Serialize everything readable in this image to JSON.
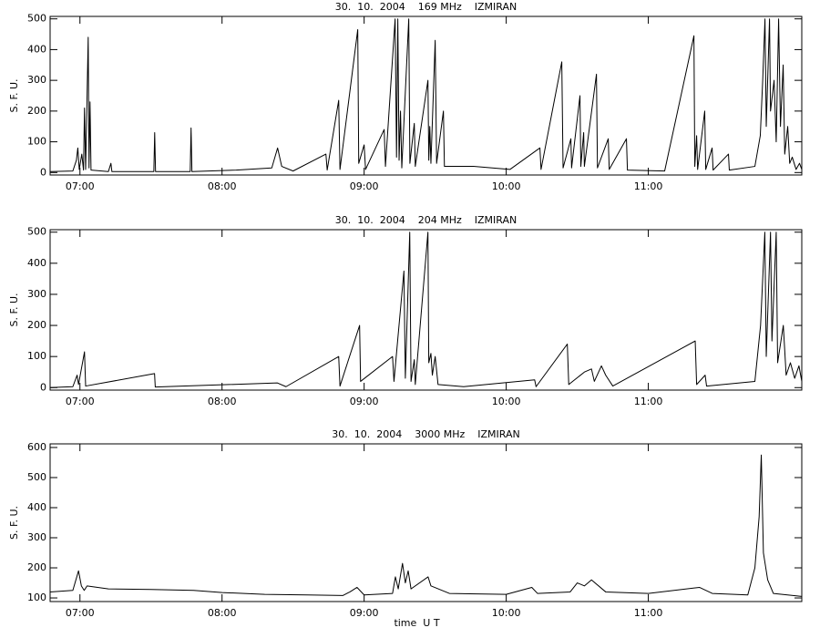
{
  "chart_data": [
    {
      "type": "line",
      "title": "30.  10.  2004    169 MHz    IZMIRAN",
      "ylabel": "S. F. U.",
      "color": "#000000",
      "xlim": [
        6.79,
        12.08
      ],
      "ylim": [
        -8,
        508
      ],
      "xticks": [
        {
          "value": 7,
          "label": "07:00"
        },
        {
          "value": 8,
          "label": "08:00"
        },
        {
          "value": 9,
          "label": "09:00"
        },
        {
          "value": 10,
          "label": "10:00"
        },
        {
          "value": 11,
          "label": "11:00"
        }
      ],
      "yticks": [
        0,
        100,
        200,
        300,
        400,
        500
      ],
      "x": [
        6.79,
        6.95,
        6.975,
        6.985,
        6.995,
        7.013,
        7.025,
        7.032,
        7.04,
        7.058,
        7.064,
        7.071,
        7.078,
        7.2,
        7.218,
        7.225,
        7.52,
        7.526,
        7.532,
        7.776,
        7.782,
        7.788,
        8.1,
        8.35,
        8.391,
        8.42,
        8.5,
        8.731,
        8.74,
        8.821,
        8.83,
        8.955,
        8.962,
        9.0,
        9.01,
        9.141,
        9.15,
        9.218,
        9.228,
        9.237,
        9.246,
        9.256,
        9.265,
        9.314,
        9.322,
        9.353,
        9.36,
        9.449,
        9.455,
        9.462,
        9.47,
        9.5,
        9.51,
        9.558,
        9.565,
        9.769,
        10.026,
        10.237,
        10.245,
        10.391,
        10.4,
        10.455,
        10.46,
        10.519,
        10.525,
        10.545,
        10.55,
        10.635,
        10.642,
        10.718,
        10.725,
        10.846,
        10.853,
        11.115,
        11.321,
        11.327,
        11.34,
        11.347,
        11.397,
        11.404,
        11.449,
        11.456,
        11.564,
        11.57,
        11.75,
        11.788,
        11.805,
        11.821,
        11.83,
        11.853,
        11.86,
        11.885,
        11.9,
        11.917,
        11.93,
        11.949,
        11.96,
        11.981,
        11.995,
        12.013,
        12.04,
        12.064,
        12.08
      ],
      "values": [
        3,
        5,
        40,
        80,
        10,
        60,
        8,
        210,
        10,
        440,
        15,
        230,
        8,
        3,
        30,
        3,
        3,
        130,
        3,
        3,
        145,
        3,
        8,
        15,
        80,
        20,
        5,
        60,
        8,
        235,
        10,
        465,
        30,
        90,
        10,
        140,
        20,
        500,
        50,
        500,
        40,
        200,
        15,
        500,
        30,
        160,
        20,
        300,
        40,
        150,
        30,
        430,
        30,
        200,
        20,
        20,
        10,
        80,
        10,
        360,
        15,
        110,
        15,
        250,
        20,
        130,
        20,
        320,
        15,
        110,
        10,
        110,
        8,
        5,
        445,
        20,
        120,
        10,
        200,
        10,
        80,
        8,
        60,
        8,
        20,
        120,
        300,
        500,
        150,
        500,
        200,
        300,
        100,
        500,
        150,
        350,
        60,
        150,
        30,
        50,
        10,
        30,
        10
      ]
    },
    {
      "type": "line",
      "title": "30.  10.  2004    204 MHz    IZMIRAN",
      "ylabel": "S. F. U.",
      "color": "#000000",
      "xlim": [
        6.79,
        12.08
      ],
      "ylim": [
        -8,
        508
      ],
      "xticks": [
        {
          "value": 7,
          "label": "07:00"
        },
        {
          "value": 8,
          "label": "08:00"
        },
        {
          "value": 9,
          "label": "09:00"
        },
        {
          "value": 10,
          "label": "10:00"
        },
        {
          "value": 11,
          "label": "11:00"
        }
      ],
      "yticks": [
        0,
        100,
        200,
        300,
        400,
        500
      ],
      "x": [
        6.79,
        6.95,
        6.98,
        6.99,
        7.032,
        7.04,
        7.525,
        7.53,
        8.39,
        8.45,
        8.821,
        8.83,
        8.968,
        8.975,
        9.2,
        9.21,
        9.28,
        9.29,
        9.321,
        9.33,
        9.353,
        9.36,
        9.449,
        9.455,
        9.47,
        9.48,
        9.5,
        9.52,
        9.7,
        10.2,
        10.21,
        10.43,
        10.44,
        10.55,
        10.6,
        10.62,
        10.67,
        10.7,
        10.75,
        11.33,
        11.34,
        11.4,
        11.41,
        11.75,
        11.79,
        11.82,
        11.83,
        11.86,
        11.87,
        11.9,
        11.91,
        11.95,
        11.97,
        12.0,
        12.03,
        12.06,
        12.08
      ],
      "values": [
        0,
        3,
        40,
        10,
        115,
        5,
        45,
        2,
        15,
        3,
        100,
        5,
        200,
        20,
        100,
        20,
        375,
        30,
        500,
        20,
        90,
        10,
        500,
        80,
        110,
        40,
        100,
        10,
        3,
        25,
        3,
        140,
        10,
        50,
        60,
        20,
        70,
        40,
        5,
        150,
        10,
        40,
        5,
        20,
        200,
        500,
        100,
        500,
        150,
        500,
        80,
        200,
        40,
        80,
        30,
        70,
        20
      ]
    },
    {
      "type": "line",
      "title": "30.  10.  2004    3000 MHz    IZMIRAN",
      "ylabel": "S. F. U.",
      "xlabel": "time  U T",
      "color": "#000000",
      "xlim": [
        6.79,
        12.08
      ],
      "ylim": [
        88,
        612
      ],
      "xticks": [
        {
          "value": 7,
          "label": "07:00"
        },
        {
          "value": 8,
          "label": "08:00"
        },
        {
          "value": 9,
          "label": "09:00"
        },
        {
          "value": 10,
          "label": "10:00"
        },
        {
          "value": 11,
          "label": "11:00"
        }
      ],
      "yticks": [
        100,
        200,
        300,
        400,
        500,
        600
      ],
      "x": [
        6.79,
        6.95,
        6.99,
        7.01,
        7.03,
        7.05,
        7.2,
        7.5,
        7.8,
        8.0,
        8.3,
        8.6,
        8.85,
        8.9,
        8.95,
        9.0,
        9.2,
        9.22,
        9.24,
        9.27,
        9.29,
        9.31,
        9.33,
        9.45,
        9.47,
        9.6,
        10.0,
        10.18,
        10.22,
        10.45,
        10.5,
        10.55,
        10.6,
        10.7,
        11.0,
        11.36,
        11.45,
        11.7,
        11.75,
        11.78,
        11.795,
        11.81,
        11.84,
        11.88,
        12.08
      ],
      "values": [
        120,
        125,
        190,
        140,
        125,
        140,
        130,
        128,
        125,
        118,
        112,
        110,
        108,
        120,
        135,
        110,
        115,
        170,
        130,
        215,
        150,
        190,
        130,
        170,
        140,
        115,
        112,
        135,
        115,
        120,
        150,
        140,
        160,
        120,
        115,
        135,
        115,
        110,
        200,
        370,
        575,
        250,
        160,
        115,
        105
      ]
    }
  ]
}
